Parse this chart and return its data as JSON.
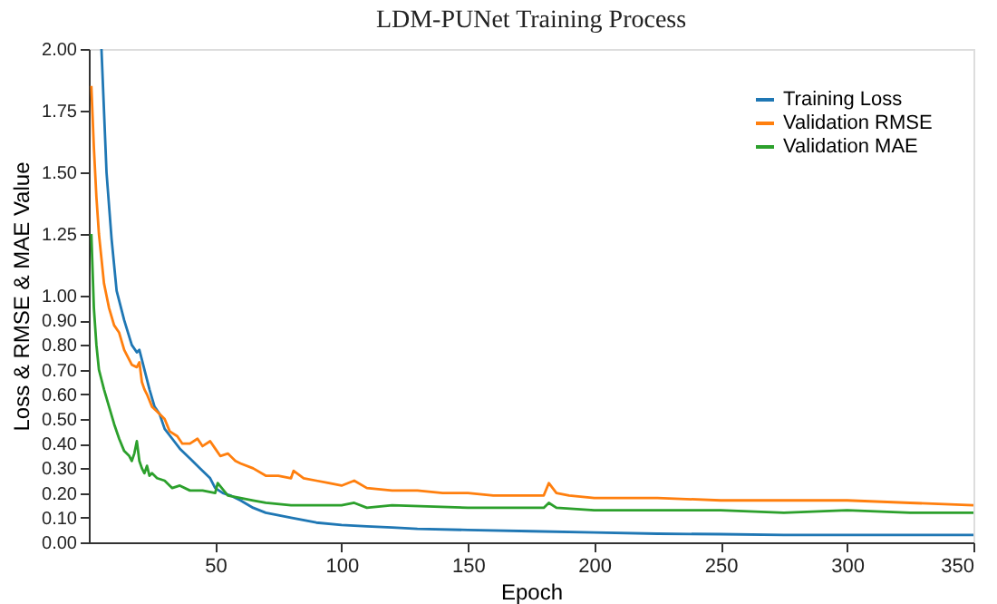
{
  "chart_data": {
    "type": "line",
    "title": "LDM-PUNet Training Process",
    "xlabel": "Epoch",
    "ylabel": "Loss & RMSE & MAE Value",
    "xlim": [
      0,
      350
    ],
    "xticks": [
      50,
      100,
      150,
      200,
      250,
      300,
      350
    ],
    "ylim": [
      0,
      2
    ],
    "yticks": [
      {
        "value": 0,
        "label": "0.00"
      },
      {
        "value": 0.1,
        "label": "0.10"
      },
      {
        "value": 0.2,
        "label": "0.20"
      },
      {
        "value": 0.3,
        "label": "0.30"
      },
      {
        "value": 0.4,
        "label": "0.40"
      },
      {
        "value": 0.5,
        "label": "0.50"
      },
      {
        "value": 0.6,
        "label": "0.60"
      },
      {
        "value": 0.7,
        "label": "0.70"
      },
      {
        "value": 0.8,
        "label": "0.80"
      },
      {
        "value": 0.9,
        "label": "0.90"
      },
      {
        "value": 1,
        "label": "1.00"
      },
      {
        "value": 1.25,
        "label": "1.25"
      },
      {
        "value": 1.5,
        "label": "1.50"
      },
      {
        "value": 1.75,
        "label": "1.75"
      },
      {
        "value": 2,
        "label": "2.00"
      }
    ],
    "grid": false,
    "legend": "top right",
    "marker": "none",
    "line_style": "solid",
    "series": [
      {
        "name": "Training Loss",
        "color": "#1f77b4",
        "x": [
          5,
          7,
          9,
          11,
          14,
          17,
          19,
          20,
          21,
          22,
          24,
          26,
          28,
          30,
          33,
          36,
          40,
          44,
          48,
          50,
          53,
          56,
          60,
          65,
          70,
          75,
          80,
          90,
          100,
          110,
          120,
          130,
          150,
          175,
          200,
          225,
          250,
          275,
          300,
          325,
          350
        ],
        "values": [
          2.0,
          1.5,
          1.23,
          1.02,
          0.9,
          0.8,
          0.77,
          0.78,
          0.74,
          0.7,
          0.62,
          0.55,
          0.52,
          0.46,
          0.42,
          0.38,
          0.34,
          0.3,
          0.26,
          0.22,
          0.2,
          0.19,
          0.17,
          0.14,
          0.12,
          0.11,
          0.1,
          0.08,
          0.07,
          0.065,
          0.06,
          0.055,
          0.05,
          0.045,
          0.04,
          0.035,
          0.033,
          0.03,
          0.03,
          0.03,
          0.03
        ]
      },
      {
        "name": "Validation RMSE",
        "color": "#ff7f0e",
        "x": [
          1,
          2,
          3,
          4,
          5,
          6,
          7,
          8,
          10,
          12,
          14,
          17,
          19,
          20,
          21,
          22,
          23,
          25,
          27,
          30,
          32,
          35,
          37,
          40,
          43,
          45,
          48,
          50,
          52,
          55,
          58,
          60,
          65,
          70,
          75,
          80,
          81,
          85,
          90,
          95,
          100,
          105,
          110,
          120,
          130,
          140,
          150,
          160,
          170,
          180,
          182,
          185,
          190,
          200,
          225,
          250,
          275,
          300,
          325,
          350
        ],
        "values": [
          1.85,
          1.6,
          1.4,
          1.25,
          1.15,
          1.05,
          1.0,
          0.95,
          0.88,
          0.85,
          0.78,
          0.72,
          0.71,
          0.73,
          0.65,
          0.62,
          0.6,
          0.55,
          0.53,
          0.5,
          0.45,
          0.43,
          0.4,
          0.4,
          0.42,
          0.39,
          0.41,
          0.38,
          0.35,
          0.36,
          0.33,
          0.32,
          0.3,
          0.27,
          0.27,
          0.26,
          0.29,
          0.26,
          0.25,
          0.24,
          0.23,
          0.25,
          0.22,
          0.21,
          0.21,
          0.2,
          0.2,
          0.19,
          0.19,
          0.19,
          0.24,
          0.2,
          0.19,
          0.18,
          0.18,
          0.17,
          0.17,
          0.17,
          0.16,
          0.15
        ]
      },
      {
        "name": "Validation MAE",
        "color": "#2ca02c",
        "x": [
          1,
          2,
          3,
          4,
          5,
          6,
          8,
          10,
          12,
          14,
          16,
          17,
          18,
          19,
          20,
          21,
          22,
          23,
          24,
          25,
          27,
          30,
          33,
          36,
          40,
          45,
          50,
          51,
          55,
          60,
          65,
          70,
          80,
          90,
          100,
          105,
          110,
          120,
          150,
          180,
          182,
          185,
          200,
          225,
          250,
          275,
          300,
          325,
          350
        ],
        "values": [
          1.25,
          0.95,
          0.8,
          0.7,
          0.66,
          0.62,
          0.55,
          0.48,
          0.42,
          0.37,
          0.35,
          0.33,
          0.36,
          0.41,
          0.33,
          0.3,
          0.28,
          0.31,
          0.27,
          0.28,
          0.26,
          0.25,
          0.22,
          0.23,
          0.21,
          0.21,
          0.2,
          0.24,
          0.19,
          0.18,
          0.17,
          0.16,
          0.15,
          0.15,
          0.15,
          0.16,
          0.14,
          0.15,
          0.14,
          0.14,
          0.16,
          0.14,
          0.13,
          0.13,
          0.13,
          0.12,
          0.13,
          0.12,
          0.12
        ]
      }
    ]
  }
}
